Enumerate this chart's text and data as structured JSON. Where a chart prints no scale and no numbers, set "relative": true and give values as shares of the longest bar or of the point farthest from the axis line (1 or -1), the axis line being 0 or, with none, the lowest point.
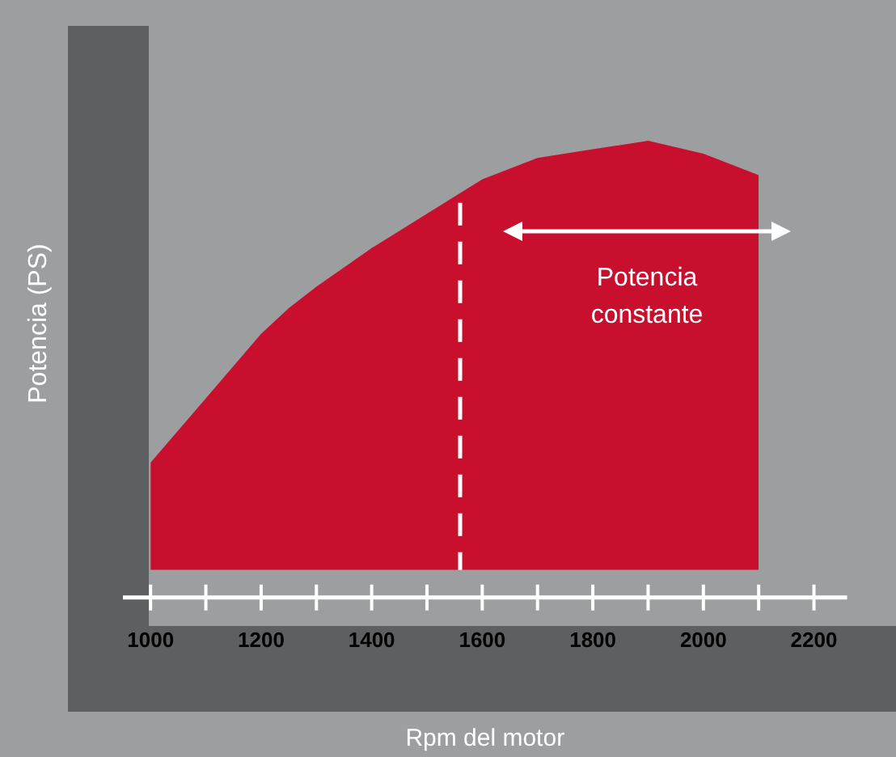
{
  "chart_data": {
    "type": "area",
    "relative": true,
    "xlabel": "Rpm del motor",
    "ylabel": "Potencia (PS)",
    "x": [
      1000,
      1100,
      1200,
      1250,
      1300,
      1400,
      1500,
      1600,
      1700,
      1800,
      1900,
      2000,
      2100
    ],
    "series": [
      {
        "color": "#c8102e",
        "values": [
          0.25,
          0.4,
          0.55,
          0.61,
          0.66,
          0.75,
          0.83,
          0.91,
          0.96,
          0.98,
          1,
          0.97,
          0.92
        ]
      }
    ],
    "xlim": [
      950,
      2260
    ],
    "xticks": [
      1000,
      {
        "value": 1100,
        "label": null
      },
      1200,
      {
        "value": 1300,
        "label": null
      },
      1400,
      {
        "value": 1500,
        "label": null
      },
      1600,
      {
        "value": 1700,
        "label": null
      },
      1800,
      {
        "value": 1900,
        "label": null
      },
      2000,
      {
        "value": 2100,
        "label": null
      },
      2200
    ],
    "ref_lines": [
      {
        "axis": "x",
        "value": 1560,
        "color": "#ffffff",
        "line_style": "dashed"
      }
    ],
    "annotations": [
      "Potencia constante"
    ],
    "grid": false,
    "legend": false,
    "marker": "none"
  }
}
